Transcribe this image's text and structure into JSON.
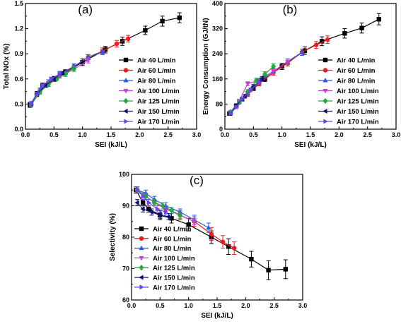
{
  "chart_data": [
    {
      "type": "line",
      "panel_label": "(a)",
      "xlabel": "SEI (kJ/L)",
      "ylabel": "Total NOx (%)",
      "xlim": [
        0,
        3.0
      ],
      "ylim": [
        0,
        1.5
      ],
      "xticks": [
        "0.0",
        "0.5",
        "1.0",
        "1.5",
        "2.0",
        "2.5",
        "3.0"
      ],
      "yticks": [
        "0.0",
        "0.3",
        "0.6",
        "0.9",
        "1.2",
        "1.5"
      ],
      "grid": false,
      "legend_position": "bottom-right",
      "series": [
        {
          "name": "Air 40 L/min",
          "color": "#000000",
          "marker": "square",
          "x": [
            0.08,
            0.2,
            0.3,
            0.5,
            0.7,
            1.0,
            1.4,
            1.7,
            2.1,
            2.4,
            2.7
          ],
          "y": [
            0.29,
            0.42,
            0.52,
            0.6,
            0.68,
            0.8,
            0.95,
            1.05,
            1.18,
            1.29,
            1.33
          ],
          "err": [
            0.03,
            0.03,
            0.03,
            0.03,
            0.03,
            0.04,
            0.04,
            0.05,
            0.05,
            0.06,
            0.06
          ]
        },
        {
          "name": "Air 60 L/min",
          "color": "#ee1c1c",
          "marker": "circle",
          "x": [
            0.1,
            0.25,
            0.4,
            0.6,
            0.85,
            1.1,
            1.35,
            1.6,
            1.8
          ],
          "y": [
            0.3,
            0.44,
            0.54,
            0.64,
            0.75,
            0.86,
            0.93,
            1.02,
            1.08
          ],
          "err": [
            0.02,
            0.02,
            0.03,
            0.03,
            0.03,
            0.03,
            0.04,
            0.04,
            0.04
          ]
        },
        {
          "name": "Air 80 L/min",
          "color": "#2a55e8",
          "marker": "triangle-up",
          "x": [
            0.1,
            0.25,
            0.4,
            0.6,
            0.85,
            1.1,
            1.35
          ],
          "y": [
            0.31,
            0.47,
            0.56,
            0.66,
            0.75,
            0.86,
            0.92
          ],
          "err": [
            0.02,
            0.02,
            0.03,
            0.03,
            0.03,
            0.03,
            0.03
          ]
        },
        {
          "name": "Air 100 L/min",
          "color": "#c33fd6",
          "marker": "triangle-down",
          "x": [
            0.1,
            0.25,
            0.4,
            0.6,
            0.85,
            1.1
          ],
          "y": [
            0.3,
            0.45,
            0.55,
            0.64,
            0.72,
            0.82
          ],
          "err": [
            0.02,
            0.02,
            0.02,
            0.03,
            0.03,
            0.03
          ]
        },
        {
          "name": "Air 125 L/min",
          "color": "#1eaa3c",
          "marker": "diamond",
          "x": [
            0.1,
            0.25,
            0.4,
            0.55,
            0.7,
            0.85
          ],
          "y": [
            0.29,
            0.44,
            0.53,
            0.6,
            0.66,
            0.72
          ],
          "err": [
            0.02,
            0.02,
            0.02,
            0.02,
            0.03,
            0.03
          ]
        },
        {
          "name": "Air 150 L/min",
          "color": "#10106e",
          "marker": "triangle-left",
          "x": [
            0.1,
            0.2,
            0.35,
            0.5,
            0.65
          ],
          "y": [
            0.3,
            0.42,
            0.52,
            0.6,
            0.67
          ],
          "err": [
            0.02,
            0.02,
            0.02,
            0.02,
            0.02
          ]
        },
        {
          "name": "Air 170 L/min",
          "color": "#6a48e0",
          "marker": "triangle-right",
          "x": [
            0.1,
            0.2,
            0.3,
            0.45,
            0.6
          ],
          "y": [
            0.3,
            0.42,
            0.52,
            0.6,
            0.66
          ],
          "err": [
            0.02,
            0.02,
            0.02,
            0.02,
            0.02
          ]
        }
      ]
    },
    {
      "type": "line",
      "panel_label": "(b)",
      "xlabel": "SEI (kJ/L)",
      "ylabel": "Energy Consumption (GJ/tN)",
      "xlim": [
        0,
        3.0
      ],
      "ylim": [
        0,
        400
      ],
      "xticks": [
        "0.0",
        "0.5",
        "1.0",
        "1.5",
        "2.0",
        "2.5",
        "3.0"
      ],
      "yticks": [
        "0",
        "80",
        "160",
        "240",
        "320",
        "400"
      ],
      "grid": false,
      "legend_position": "bottom-right",
      "series": [
        {
          "name": "Air 40 L/min",
          "color": "#000000",
          "marker": "square",
          "x": [
            0.08,
            0.2,
            0.3,
            0.5,
            0.7,
            1.0,
            1.4,
            1.7,
            2.1,
            2.4,
            2.7
          ],
          "y": [
            50,
            75,
            95,
            130,
            160,
            200,
            250,
            280,
            305,
            322,
            350
          ],
          "err": [
            4,
            5,
            6,
            7,
            8,
            10,
            12,
            14,
            15,
            16,
            18
          ]
        },
        {
          "name": "Air 60 L/min",
          "color": "#ee1c1c",
          "marker": "circle",
          "x": [
            0.1,
            0.25,
            0.4,
            0.6,
            0.85,
            1.1,
            1.35,
            1.6,
            1.8
          ],
          "y": [
            55,
            85,
            110,
            145,
            180,
            210,
            245,
            268,
            285
          ],
          "err": [
            4,
            5,
            6,
            7,
            8,
            9,
            10,
            11,
            12
          ]
        },
        {
          "name": "Air 80 L/min",
          "color": "#2a55e8",
          "marker": "triangle-up",
          "x": [
            0.1,
            0.25,
            0.4,
            0.6,
            0.85,
            1.1,
            1.35
          ],
          "y": [
            55,
            88,
            115,
            150,
            185,
            215,
            245
          ],
          "err": [
            4,
            5,
            6,
            7,
            8,
            9,
            10
          ]
        },
        {
          "name": "Air 100 L/min",
          "color": "#c33fd6",
          "marker": "triangle-down",
          "x": [
            0.1,
            0.25,
            0.4,
            0.6,
            0.85,
            1.1
          ],
          "y": [
            55,
            90,
            145,
            155,
            185,
            215
          ],
          "err": [
            4,
            5,
            6,
            7,
            8,
            9
          ]
        },
        {
          "name": "Air 125 L/min",
          "color": "#1eaa3c",
          "marker": "diamond",
          "x": [
            0.1,
            0.25,
            0.4,
            0.55,
            0.7,
            0.85
          ],
          "y": [
            55,
            85,
            120,
            155,
            175,
            200
          ],
          "err": [
            4,
            5,
            6,
            7,
            8,
            8
          ]
        },
        {
          "name": "Air 150 L/min",
          "color": "#10106e",
          "marker": "triangle-left",
          "x": [
            0.1,
            0.2,
            0.35,
            0.5,
            0.65
          ],
          "y": [
            50,
            75,
            105,
            135,
            160
          ],
          "err": [
            4,
            5,
            6,
            7,
            7
          ]
        },
        {
          "name": "Air 170 L/min",
          "color": "#6a48e0",
          "marker": "triangle-right",
          "x": [
            0.1,
            0.2,
            0.3,
            0.45,
            0.6
          ],
          "y": [
            50,
            70,
            95,
            125,
            150
          ],
          "err": [
            4,
            5,
            6,
            6,
            7
          ]
        }
      ]
    },
    {
      "type": "line",
      "panel_label": "(c)",
      "xlabel": "SEI (kJ/L)",
      "ylabel": "Selectivity (%)",
      "xlim": [
        0,
        3.0
      ],
      "ylim": [
        60,
        100
      ],
      "xticks": [
        "0.0",
        "0.5",
        "1.0",
        "1.5",
        "2.0",
        "2.5",
        "3.0"
      ],
      "yticks": [
        "60",
        "70",
        "80",
        "90",
        "100"
      ],
      "grid": false,
      "legend_position": "bottom-left",
      "series": [
        {
          "name": "Air 40 L/min",
          "color": "#000000",
          "marker": "square",
          "x": [
            0.08,
            0.2,
            0.3,
            0.5,
            0.7,
            1.0,
            1.4,
            1.7,
            2.1,
            2.4,
            2.7
          ],
          "y": [
            95,
            91,
            89,
            87,
            86,
            84,
            80,
            77,
            73,
            69.5,
            69.8
          ],
          "err": [
            1,
            1,
            1,
            1.5,
            1.5,
            2,
            2,
            2.5,
            2.5,
            3,
            3
          ]
        },
        {
          "name": "Air 60 L/min",
          "color": "#ee1c1c",
          "marker": "circle",
          "x": [
            0.1,
            0.25,
            0.4,
            0.6,
            0.85,
            1.1,
            1.4,
            1.6,
            1.8
          ],
          "y": [
            95,
            93,
            91,
            89,
            87,
            85,
            81,
            78.5,
            76.5
          ],
          "err": [
            1,
            1,
            1,
            1,
            1.5,
            1.5,
            2,
            2,
            2
          ]
        },
        {
          "name": "Air 80 L/min",
          "color": "#2a55e8",
          "marker": "triangle-up",
          "x": [
            0.1,
            0.25,
            0.4,
            0.6,
            0.85,
            1.1,
            1.35
          ],
          "y": [
            95,
            94,
            92,
            90,
            88,
            85.5,
            83
          ],
          "err": [
            1,
            1,
            1,
            1,
            1,
            1.5,
            1.5
          ]
        },
        {
          "name": "Air 100 L/min",
          "color": "#c33fd6",
          "marker": "triangle-down",
          "x": [
            0.1,
            0.25,
            0.4,
            0.6,
            0.85,
            1.1
          ],
          "y": [
            95,
            93,
            91,
            89,
            87,
            85
          ],
          "err": [
            1,
            1,
            1,
            1,
            1,
            1
          ]
        },
        {
          "name": "Air 125 L/min",
          "color": "#1eaa3c",
          "marker": "diamond",
          "x": [
            0.1,
            0.25,
            0.4,
            0.55,
            0.7,
            0.85
          ],
          "y": [
            95,
            93,
            91,
            90,
            88.5,
            87
          ],
          "err": [
            1,
            1,
            1,
            1,
            1,
            1
          ]
        },
        {
          "name": "Air 150 L/min",
          "color": "#10106e",
          "marker": "triangle-left",
          "x": [
            0.1,
            0.2,
            0.35,
            0.5,
            0.65
          ],
          "y": [
            91,
            89,
            88,
            87,
            86.5
          ],
          "err": [
            1,
            1,
            1,
            1,
            1
          ]
        },
        {
          "name": "Air 170 L/min",
          "color": "#6a48e0",
          "marker": "triangle-right",
          "x": [
            0.1,
            0.2,
            0.3,
            0.45,
            0.6
          ],
          "y": [
            95,
            93,
            91,
            89,
            88
          ],
          "err": [
            1,
            1,
            1,
            1,
            1
          ]
        }
      ]
    }
  ]
}
